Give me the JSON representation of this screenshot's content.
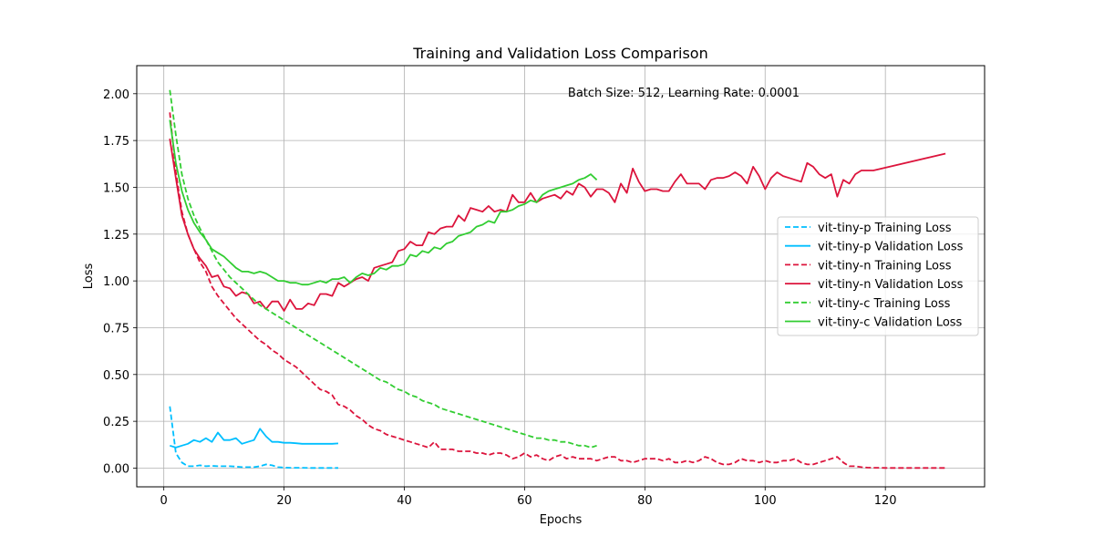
{
  "chart_data": {
    "type": "line",
    "title": "Training and Validation Loss Comparison",
    "xlabel": "Epochs",
    "ylabel": "Loss",
    "annotation": "Batch Size: 512, Learning Rate: 0.0001",
    "xlim": [
      -4.5,
      136.5
    ],
    "ylim": [
      -0.1,
      2.15
    ],
    "xticks": [
      0,
      20,
      40,
      60,
      80,
      100,
      120
    ],
    "yticks": [
      0.0,
      0.25,
      0.5,
      0.75,
      1.0,
      1.25,
      1.5,
      1.75,
      2.0
    ],
    "ytick_labels": [
      "0.00",
      "0.25",
      "0.50",
      "0.75",
      "1.00",
      "1.25",
      "1.50",
      "1.75",
      "2.00"
    ],
    "grid": true,
    "legend_position": "center-right",
    "series": [
      {
        "name": "vit-tiny-p Training Loss",
        "color": "#00BFFF",
        "style": "dashed",
        "x": [
          1,
          2,
          3,
          4,
          5,
          6,
          7,
          8,
          9,
          10,
          11,
          12,
          13,
          14,
          15,
          16,
          17,
          18,
          19,
          20,
          21,
          22,
          23,
          24,
          25,
          26,
          27,
          28,
          29
        ],
        "y": [
          0.33,
          0.08,
          0.03,
          0.01,
          0.01,
          0.015,
          0.01,
          0.012,
          0.01,
          0.01,
          0.01,
          0.008,
          0.005,
          0.005,
          0.005,
          0.01,
          0.02,
          0.015,
          0.005,
          0.003,
          0.002,
          0.002,
          0.002,
          0.001,
          0.001,
          0.001,
          0.001,
          0.001,
          0.001
        ]
      },
      {
        "name": "vit-tiny-p Validation Loss",
        "color": "#00BFFF",
        "style": "solid",
        "x": [
          1,
          2,
          3,
          4,
          5,
          6,
          7,
          8,
          9,
          10,
          11,
          12,
          13,
          14,
          15,
          16,
          17,
          18,
          19,
          20,
          21,
          22,
          23,
          24,
          25,
          26,
          27,
          28,
          29
        ],
        "y": [
          0.12,
          0.11,
          0.12,
          0.13,
          0.15,
          0.14,
          0.16,
          0.14,
          0.19,
          0.15,
          0.15,
          0.16,
          0.13,
          0.14,
          0.15,
          0.21,
          0.17,
          0.14,
          0.14,
          0.135,
          0.135,
          0.133,
          0.13,
          0.13,
          0.13,
          0.13,
          0.13,
          0.13,
          0.132
        ]
      },
      {
        "name": "vit-tiny-n Training Loss",
        "color": "#DC143C",
        "style": "dashed",
        "x": [
          1,
          2,
          3,
          4,
          5,
          6,
          7,
          8,
          9,
          10,
          11,
          12,
          13,
          14,
          15,
          16,
          17,
          18,
          19,
          20,
          21,
          22,
          23,
          24,
          25,
          26,
          27,
          28,
          29,
          30,
          31,
          32,
          33,
          34,
          35,
          36,
          37,
          38,
          39,
          40,
          41,
          42,
          43,
          44,
          45,
          46,
          47,
          48,
          49,
          50,
          51,
          52,
          53,
          54,
          55,
          56,
          57,
          58,
          59,
          60,
          61,
          62,
          63,
          64,
          65,
          66,
          67,
          68,
          69,
          70,
          71,
          72,
          73,
          74,
          75,
          76,
          77,
          78,
          79,
          80,
          81,
          82,
          83,
          84,
          85,
          86,
          87,
          88,
          89,
          90,
          91,
          92,
          93,
          94,
          95,
          96,
          97,
          98,
          99,
          100,
          101,
          102,
          103,
          104,
          105,
          106,
          107,
          108,
          109,
          110,
          111,
          112,
          113,
          114,
          115,
          116,
          117,
          118,
          119,
          120,
          121,
          122,
          123,
          124,
          125,
          126,
          127,
          128,
          129,
          130
        ],
        "y": [
          1.9,
          1.58,
          1.37,
          1.25,
          1.17,
          1.1,
          1.05,
          0.97,
          0.92,
          0.88,
          0.84,
          0.8,
          0.77,
          0.74,
          0.71,
          0.68,
          0.66,
          0.63,
          0.61,
          0.58,
          0.56,
          0.54,
          0.51,
          0.48,
          0.45,
          0.42,
          0.41,
          0.39,
          0.34,
          0.33,
          0.31,
          0.28,
          0.26,
          0.23,
          0.21,
          0.2,
          0.18,
          0.17,
          0.16,
          0.15,
          0.14,
          0.13,
          0.12,
          0.11,
          0.14,
          0.1,
          0.1,
          0.1,
          0.09,
          0.09,
          0.09,
          0.08,
          0.08,
          0.07,
          0.08,
          0.08,
          0.07,
          0.05,
          0.06,
          0.08,
          0.06,
          0.07,
          0.05,
          0.04,
          0.06,
          0.07,
          0.05,
          0.06,
          0.05,
          0.05,
          0.05,
          0.04,
          0.05,
          0.06,
          0.06,
          0.04,
          0.04,
          0.03,
          0.04,
          0.05,
          0.05,
          0.05,
          0.04,
          0.05,
          0.03,
          0.03,
          0.04,
          0.03,
          0.04,
          0.06,
          0.05,
          0.03,
          0.02,
          0.02,
          0.03,
          0.05,
          0.04,
          0.04,
          0.03,
          0.04,
          0.03,
          0.03,
          0.04,
          0.04,
          0.05,
          0.03,
          0.02,
          0.02,
          0.03,
          0.04,
          0.05,
          0.06,
          0.03,
          0.01,
          0.01,
          0.005,
          0.003,
          0.002,
          0.002,
          0.001,
          0.001,
          0.001,
          0.001,
          0.001,
          0.001,
          0.001,
          0.001,
          0.001,
          0.001,
          0.001
        ]
      },
      {
        "name": "vit-tiny-n Validation Loss",
        "color": "#DC143C",
        "style": "solid",
        "x": [
          1,
          2,
          3,
          4,
          5,
          6,
          7,
          8,
          9,
          10,
          11,
          12,
          13,
          14,
          15,
          16,
          17,
          18,
          19,
          20,
          21,
          22,
          23,
          24,
          25,
          26,
          27,
          28,
          29,
          30,
          31,
          32,
          33,
          34,
          35,
          36,
          37,
          38,
          39,
          40,
          41,
          42,
          43,
          44,
          45,
          46,
          47,
          48,
          49,
          50,
          51,
          52,
          53,
          54,
          55,
          56,
          57,
          58,
          59,
          60,
          61,
          62,
          63,
          64,
          65,
          66,
          67,
          68,
          69,
          70,
          71,
          72,
          73,
          74,
          75,
          76,
          77,
          78,
          79,
          80,
          81,
          82,
          83,
          84,
          85,
          86,
          87,
          88,
          89,
          90,
          91,
          92,
          93,
          94,
          95,
          96,
          97,
          98,
          99,
          100,
          101,
          102,
          103,
          104,
          105,
          106,
          107,
          108,
          109,
          110,
          111,
          112,
          113,
          114,
          115,
          116,
          117,
          118,
          130
        ],
        "y": [
          1.76,
          1.55,
          1.35,
          1.25,
          1.17,
          1.12,
          1.08,
          1.02,
          1.03,
          0.97,
          0.96,
          0.92,
          0.94,
          0.93,
          0.88,
          0.89,
          0.85,
          0.89,
          0.89,
          0.84,
          0.9,
          0.85,
          0.85,
          0.88,
          0.87,
          0.93,
          0.93,
          0.92,
          0.99,
          0.97,
          0.99,
          1.01,
          1.02,
          1.0,
          1.07,
          1.08,
          1.09,
          1.1,
          1.16,
          1.17,
          1.21,
          1.19,
          1.19,
          1.26,
          1.25,
          1.28,
          1.29,
          1.29,
          1.35,
          1.32,
          1.39,
          1.38,
          1.37,
          1.4,
          1.37,
          1.38,
          1.37,
          1.46,
          1.42,
          1.42,
          1.47,
          1.42,
          1.44,
          1.45,
          1.46,
          1.44,
          1.48,
          1.46,
          1.52,
          1.5,
          1.45,
          1.49,
          1.49,
          1.47,
          1.42,
          1.52,
          1.47,
          1.6,
          1.53,
          1.48,
          1.49,
          1.49,
          1.48,
          1.48,
          1.53,
          1.57,
          1.52,
          1.52,
          1.52,
          1.49,
          1.54,
          1.55,
          1.55,
          1.56,
          1.58,
          1.56,
          1.52,
          1.61,
          1.56,
          1.49,
          1.55,
          1.58,
          1.56,
          1.55,
          1.54,
          1.53,
          1.63,
          1.61,
          1.57,
          1.55,
          1.57,
          1.45,
          1.54,
          1.52,
          1.57,
          1.59,
          1.59,
          1.59,
          1.68
        ]
      },
      {
        "name": "vit-tiny-c Training Loss",
        "color": "#32CD32",
        "style": "dashed",
        "x": [
          1,
          2,
          3,
          4,
          5,
          6,
          7,
          8,
          9,
          10,
          11,
          12,
          13,
          14,
          15,
          16,
          17,
          18,
          19,
          20,
          21,
          22,
          23,
          24,
          25,
          26,
          27,
          28,
          29,
          30,
          31,
          32,
          33,
          34,
          35,
          36,
          37,
          38,
          39,
          40,
          41,
          42,
          43,
          44,
          45,
          46,
          47,
          48,
          49,
          50,
          51,
          52,
          53,
          54,
          55,
          56,
          57,
          58,
          59,
          60,
          61,
          62,
          63,
          64,
          65,
          66,
          67,
          68,
          69,
          70,
          71,
          72
        ],
        "y": [
          2.02,
          1.78,
          1.57,
          1.44,
          1.35,
          1.28,
          1.22,
          1.16,
          1.1,
          1.06,
          1.02,
          0.99,
          0.96,
          0.93,
          0.9,
          0.87,
          0.85,
          0.83,
          0.81,
          0.79,
          0.77,
          0.75,
          0.73,
          0.71,
          0.69,
          0.67,
          0.65,
          0.63,
          0.61,
          0.59,
          0.57,
          0.55,
          0.53,
          0.51,
          0.49,
          0.47,
          0.46,
          0.44,
          0.42,
          0.41,
          0.39,
          0.38,
          0.36,
          0.35,
          0.34,
          0.32,
          0.31,
          0.3,
          0.29,
          0.28,
          0.27,
          0.26,
          0.25,
          0.24,
          0.23,
          0.22,
          0.21,
          0.2,
          0.19,
          0.18,
          0.17,
          0.16,
          0.16,
          0.15,
          0.15,
          0.14,
          0.14,
          0.13,
          0.12,
          0.12,
          0.11,
          0.12
        ]
      },
      {
        "name": "vit-tiny-c Validation Loss",
        "color": "#32CD32",
        "style": "solid",
        "x": [
          1,
          2,
          3,
          4,
          5,
          6,
          7,
          8,
          9,
          10,
          11,
          12,
          13,
          14,
          15,
          16,
          17,
          18,
          19,
          20,
          21,
          22,
          23,
          24,
          25,
          26,
          27,
          28,
          29,
          30,
          31,
          32,
          33,
          34,
          35,
          36,
          37,
          38,
          39,
          40,
          41,
          42,
          43,
          44,
          45,
          46,
          47,
          48,
          49,
          50,
          51,
          52,
          53,
          54,
          55,
          56,
          57,
          58,
          59,
          60,
          61,
          62,
          63,
          64,
          65,
          66,
          67,
          68,
          69,
          70,
          71,
          72
        ],
        "y": [
          1.86,
          1.63,
          1.48,
          1.38,
          1.31,
          1.26,
          1.22,
          1.17,
          1.15,
          1.13,
          1.1,
          1.07,
          1.05,
          1.05,
          1.04,
          1.05,
          1.04,
          1.02,
          1.0,
          1.0,
          0.99,
          0.99,
          0.98,
          0.98,
          0.99,
          1.0,
          0.99,
          1.01,
          1.01,
          1.02,
          0.99,
          1.02,
          1.04,
          1.03,
          1.04,
          1.07,
          1.06,
          1.08,
          1.08,
          1.09,
          1.14,
          1.13,
          1.16,
          1.15,
          1.18,
          1.17,
          1.2,
          1.21,
          1.24,
          1.25,
          1.26,
          1.29,
          1.3,
          1.32,
          1.31,
          1.37,
          1.37,
          1.38,
          1.4,
          1.41,
          1.43,
          1.42,
          1.46,
          1.48,
          1.49,
          1.5,
          1.51,
          1.52,
          1.54,
          1.55,
          1.57,
          1.54
        ]
      }
    ]
  }
}
